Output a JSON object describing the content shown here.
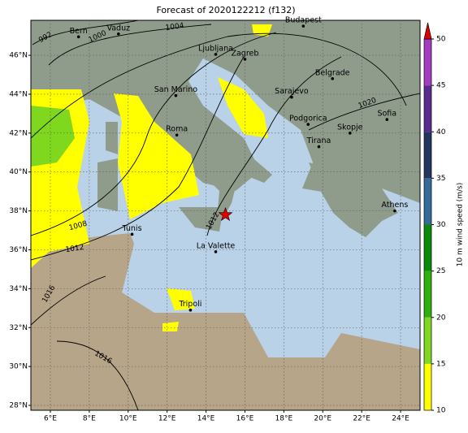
{
  "title": "Forecast of 2020122212 (f132)",
  "map": {
    "lonlim": [
      5,
      25
    ],
    "latlim": [
      27.75,
      47.8
    ],
    "grid": true,
    "xticks": [
      {
        "value": 6,
        "label": "6°E"
      },
      {
        "value": 8,
        "label": "8°E"
      },
      {
        "value": 10,
        "label": "10°E"
      },
      {
        "value": 12,
        "label": "12°E"
      },
      {
        "value": 14,
        "label": "14°E"
      },
      {
        "value": 16,
        "label": "16°E"
      },
      {
        "value": 18,
        "label": "18°E"
      },
      {
        "value": 20,
        "label": "20°E"
      },
      {
        "value": 22,
        "label": "22°E"
      },
      {
        "value": 24,
        "label": "24°E"
      }
    ],
    "yticks": [
      {
        "value": 28,
        "label": "28°N"
      },
      {
        "value": 30,
        "label": "30°N"
      },
      {
        "value": 32,
        "label": "32°N"
      },
      {
        "value": 34,
        "label": "34°N"
      },
      {
        "value": 36,
        "label": "36°N"
      },
      {
        "value": 38,
        "label": "38°N"
      },
      {
        "value": 40,
        "label": "40°N"
      },
      {
        "value": 42,
        "label": "42°N"
      },
      {
        "value": 44,
        "label": "44°N"
      },
      {
        "value": 46,
        "label": "46°N"
      }
    ],
    "cities": [
      {
        "name": "Budapest",
        "lon": 19.0,
        "lat": 47.5
      },
      {
        "name": "Vaduz",
        "lon": 9.5,
        "lat": 47.1
      },
      {
        "name": "Bern",
        "lon": 7.45,
        "lat": 46.95
      },
      {
        "name": "Ljubljana",
        "lon": 14.5,
        "lat": 46.05
      },
      {
        "name": "Zagreb",
        "lon": 16.0,
        "lat": 45.8
      },
      {
        "name": "Belgrade",
        "lon": 20.5,
        "lat": 44.8
      },
      {
        "name": "San Marino",
        "lon": 12.45,
        "lat": 43.93
      },
      {
        "name": "Sarajevo",
        "lon": 18.4,
        "lat": 43.85
      },
      {
        "name": "Podgorica",
        "lon": 19.25,
        "lat": 42.45
      },
      {
        "name": "Sofia",
        "lon": 23.3,
        "lat": 42.7
      },
      {
        "name": "Skopje",
        "lon": 21.4,
        "lat": 42.0
      },
      {
        "name": "Roma",
        "lon": 12.5,
        "lat": 41.9
      },
      {
        "name": "Tirana",
        "lon": 19.8,
        "lat": 41.3
      },
      {
        "name": "Athens",
        "lon": 23.7,
        "lat": 38.0
      },
      {
        "name": "Tunis",
        "lon": 10.2,
        "lat": 36.8
      },
      {
        "name": "La Valette",
        "lon": 14.5,
        "lat": 35.9
      },
      {
        "name": "Tripoli",
        "lon": 13.2,
        "lat": 32.9
      }
    ],
    "marker": {
      "lon": 15.0,
      "lat": 37.8,
      "color": "#e00000"
    },
    "isobar_labels": [
      "992",
      "1000",
      "1004",
      "1008",
      "1012",
      "1016",
      "1016",
      "1020",
      "1012"
    ]
  },
  "colorbar": {
    "label": "10 m wind speed (m/s)",
    "lim": [
      10,
      50
    ],
    "ticks": [
      10,
      15,
      20,
      25,
      30,
      35,
      40,
      45,
      50
    ],
    "colors": [
      "#ffff00",
      "#80d820",
      "#30b010",
      "#0a8a0a",
      "#336b9a",
      "#24355f",
      "#5a2a8c",
      "#a33cc0"
    ],
    "extend_color": "#e00000"
  }
}
